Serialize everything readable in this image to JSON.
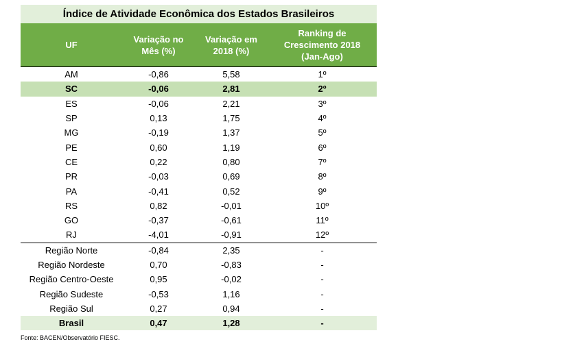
{
  "title": "Índice de Atividade Econômica dos Estados Brasileiros",
  "columns": [
    "UF",
    "Variação no\nMês (%)",
    "Variação em\n2018 (%)",
    "Ranking  de\nCrescimento 2018\n(Jan-Ago)"
  ],
  "states": [
    {
      "uf": "AM",
      "mes": "-0,86",
      "ano": "5,58",
      "rank": "1º",
      "highlight": false
    },
    {
      "uf": "SC",
      "mes": "-0,06",
      "ano": "2,81",
      "rank": "2º",
      "highlight": true
    },
    {
      "uf": "ES",
      "mes": "-0,06",
      "ano": "2,21",
      "rank": "3º",
      "highlight": false
    },
    {
      "uf": "SP",
      "mes": "0,13",
      "ano": "1,75",
      "rank": "4º",
      "highlight": false
    },
    {
      "uf": "MG",
      "mes": "-0,19",
      "ano": "1,37",
      "rank": "5º",
      "highlight": false
    },
    {
      "uf": "PE",
      "mes": "0,60",
      "ano": "1,19",
      "rank": "6º",
      "highlight": false
    },
    {
      "uf": "CE",
      "mes": "0,22",
      "ano": "0,80",
      "rank": "7º",
      "highlight": false
    },
    {
      "uf": "PR",
      "mes": "-0,03",
      "ano": "0,69",
      "rank": "8º",
      "highlight": false
    },
    {
      "uf": "PA",
      "mes": "-0,41",
      "ano": "0,52",
      "rank": "9º",
      "highlight": false
    },
    {
      "uf": "RS",
      "mes": "0,82",
      "ano": "-0,01",
      "rank": "10º",
      "highlight": false
    },
    {
      "uf": "GO",
      "mes": "-0,37",
      "ano": "-0,61",
      "rank": "11º",
      "highlight": false
    },
    {
      "uf": "RJ",
      "mes": "-4,01",
      "ano": "-0,91",
      "rank": "12º",
      "highlight": false
    }
  ],
  "regions": [
    {
      "uf": "Região Norte",
      "mes": "-0,84",
      "ano": "2,35",
      "rank": "-"
    },
    {
      "uf": "Região Nordeste",
      "mes": "0,70",
      "ano": "-0,83",
      "rank": "-"
    },
    {
      "uf": "Região Centro-Oeste",
      "mes": "0,95",
      "ano": "-0,02",
      "rank": "-"
    },
    {
      "uf": "Região Sudeste",
      "mes": "-0,53",
      "ano": "1,16",
      "rank": "-"
    },
    {
      "uf": "Região Sul",
      "mes": "0,27",
      "ano": "0,94",
      "rank": "-"
    }
  ],
  "total": {
    "uf": "Brasil",
    "mes": "0,47",
    "ano": "1,28",
    "rank": "-"
  },
  "source": "Fonte: BACEN/Observatório FIESC."
}
